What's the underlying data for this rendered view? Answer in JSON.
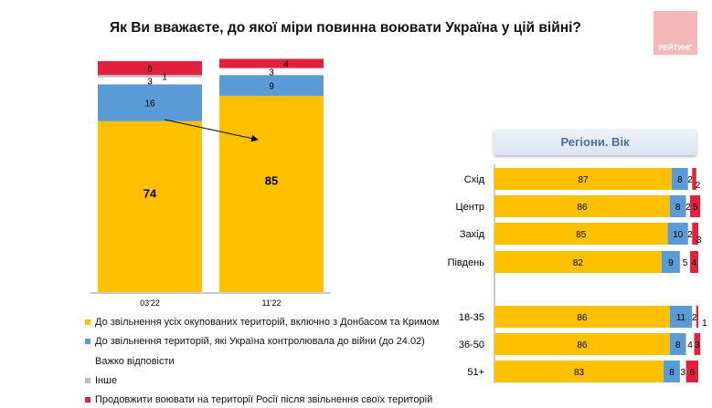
{
  "title": "Як Ви вважаєте, до якої міри повинна воювати Україна у цій війні?",
  "logo": "РЕЙТИНГ",
  "colors": {
    "liberate_all": "#ffc000",
    "to_24_02": "#5b9bd5",
    "hard_to_say": "#ffffff",
    "other": "#bfbfbf",
    "continue_russia": "#e0223f"
  },
  "legend": [
    {
      "label": "До звільнення усіх окупованих територій, включно з Донбасом та Кримом",
      "color": "#ffc000"
    },
    {
      "label": "До звільнення територій, які Україна контролювала до війни (до 24.02)",
      "color": "#5b9bd5"
    },
    {
      "label": "Важко відповісти",
      "color": "#ffffff"
    },
    {
      "label": "Інше",
      "color": "#bfbfbf"
    },
    {
      "label": "Продовжити воювати на території Росії після звільнення своїх територій",
      "color": "#e0223f"
    }
  ],
  "chart_data": [
    {
      "type": "bar",
      "stacked": true,
      "orientation": "vertical",
      "categories": [
        "03'22",
        "11'22"
      ],
      "series": [
        {
          "name": "До звільнення усіх окупованих територій, включно з Донбасом та Кримом",
          "values": [
            74,
            85
          ]
        },
        {
          "name": "До звільнення територій, які Україна контролювала до війни (до 24.02)",
          "values": [
            16,
            9
          ]
        },
        {
          "name": "Важко відповісти",
          "values": [
            3,
            3
          ]
        },
        {
          "name": "Інше",
          "values": [
            1,
            0
          ]
        },
        {
          "name": "Продовжити воювати на території Росії після звільнення своїх територій",
          "values": [
            6,
            4
          ]
        }
      ],
      "ylim": [
        0,
        100
      ]
    },
    {
      "type": "bar",
      "stacked": true,
      "orientation": "horizontal",
      "title": "Регіони. Вік",
      "categories": [
        "Схід",
        "Центр",
        "Захід",
        "Південь",
        "18-35",
        "36-50",
        "51+"
      ],
      "series": [
        {
          "name": "До звільнення усіх окупованих територій, включно з Донбасом та Кримом",
          "values": [
            87,
            86,
            85,
            82,
            86,
            86,
            83
          ]
        },
        {
          "name": "До звільнення територій, які Україна контролювала до війни (до 24.02)",
          "values": [
            8,
            8,
            10,
            9,
            11,
            8,
            8
          ]
        },
        {
          "name": "Важко відповісти",
          "values": [
            2,
            2,
            2,
            5,
            2,
            4,
            3
          ]
        },
        {
          "name": "Інше",
          "values": [
            0,
            0,
            0,
            0,
            0,
            0,
            0
          ]
        },
        {
          "name": "Продовжити воювати на території Росії після звільнення своїх територій",
          "values": [
            2,
            5,
            3,
            4,
            1,
            3,
            6
          ]
        }
      ],
      "xlim": [
        0,
        100
      ]
    }
  ]
}
